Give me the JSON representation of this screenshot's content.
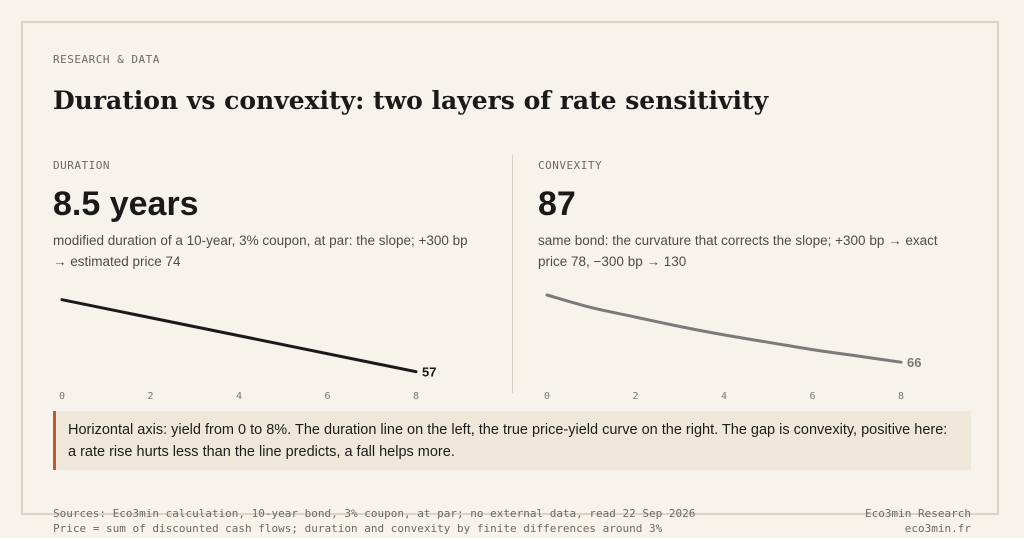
{
  "eyebrow": "RESEARCH & DATA",
  "title": "Duration vs convexity: two layers of rate sensitivity",
  "left": {
    "label": "DURATION",
    "value": "8.5 years",
    "description": "modified duration of a 10-year, 3% coupon, at par: the slope; +300 bp → estimated price 74"
  },
  "right": {
    "label": "CONVEXITY",
    "value": "87",
    "description": "same bond: the curvature that corrects the slope; +300 bp → exact price 78, −300 bp → 130"
  },
  "note": "Horizontal axis: yield from 0 to 8%. The duration line on the left, the true price-yield curve on the right. The gap is convexity, positive here: a rate rise hurts less than the line predicts, a fall helps more.",
  "footer": {
    "sources": "Sources: Eco3min calculation, 10-year bond, 3% coupon, at par; no external data, read 22 Sep 2026",
    "method": "Price = sum of discounted cash flows; duration and convexity by finite differences around 3%",
    "brand": "Eco3min Research",
    "site": "eco3min.fr"
  },
  "colors": {
    "duration_line": "#1a1a1a",
    "convexity_curve": "#7a7a7a",
    "note_accent": "#b85c3c"
  },
  "chart_data": [
    {
      "type": "line",
      "name": "duration",
      "x_ticks": [
        "0",
        "2",
        "4",
        "6",
        "8"
      ],
      "xlim": [
        0,
        8
      ],
      "ylim": [
        50,
        150
      ],
      "x": [
        0,
        8
      ],
      "y": [
        125.5,
        57
      ],
      "end_label": "57"
    },
    {
      "type": "line",
      "name": "convexity",
      "x_ticks": [
        "0",
        "2",
        "4",
        "6",
        "8"
      ],
      "xlim": [
        0,
        8
      ],
      "ylim": [
        50,
        150
      ],
      "x": [
        0,
        1,
        2,
        3,
        4,
        5,
        6,
        7,
        8
      ],
      "y": [
        130,
        118,
        109,
        100,
        92,
        85,
        78,
        72,
        66
      ],
      "end_label": "66"
    }
  ]
}
